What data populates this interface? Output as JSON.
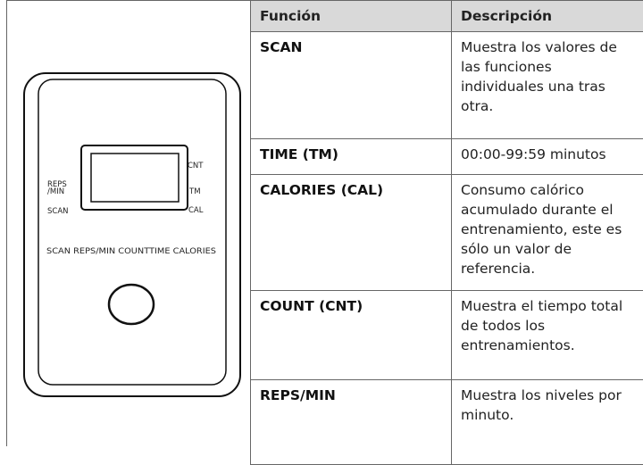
{
  "device": {
    "labels": {
      "cnt": "CNT",
      "reps_min": "REPS\n/MIN",
      "tm": "TM",
      "scan": "SCAN",
      "cal": "CAL",
      "buttons": "SCAN REPS/MIN COUNTTIME CALORIES"
    }
  },
  "table": {
    "header": [
      "Función",
      "Descripción"
    ],
    "rows": [
      [
        "SCAN",
        "Muestra los valores de las funciones individuales una tras otra."
      ],
      [
        "TIME (TM)",
        "00:00-99:59 minutos"
      ],
      [
        "CALORIES (CAL)",
        "Consumo calórico acumulado durante el entrenamiento, este es sólo un valor de referencia."
      ],
      [
        "COUNT (CNT)",
        "Muestra el tiempo total de todos los entrenamientos."
      ],
      [
        "REPS/MIN",
        "Muestra los niveles por minuto."
      ]
    ]
  }
}
